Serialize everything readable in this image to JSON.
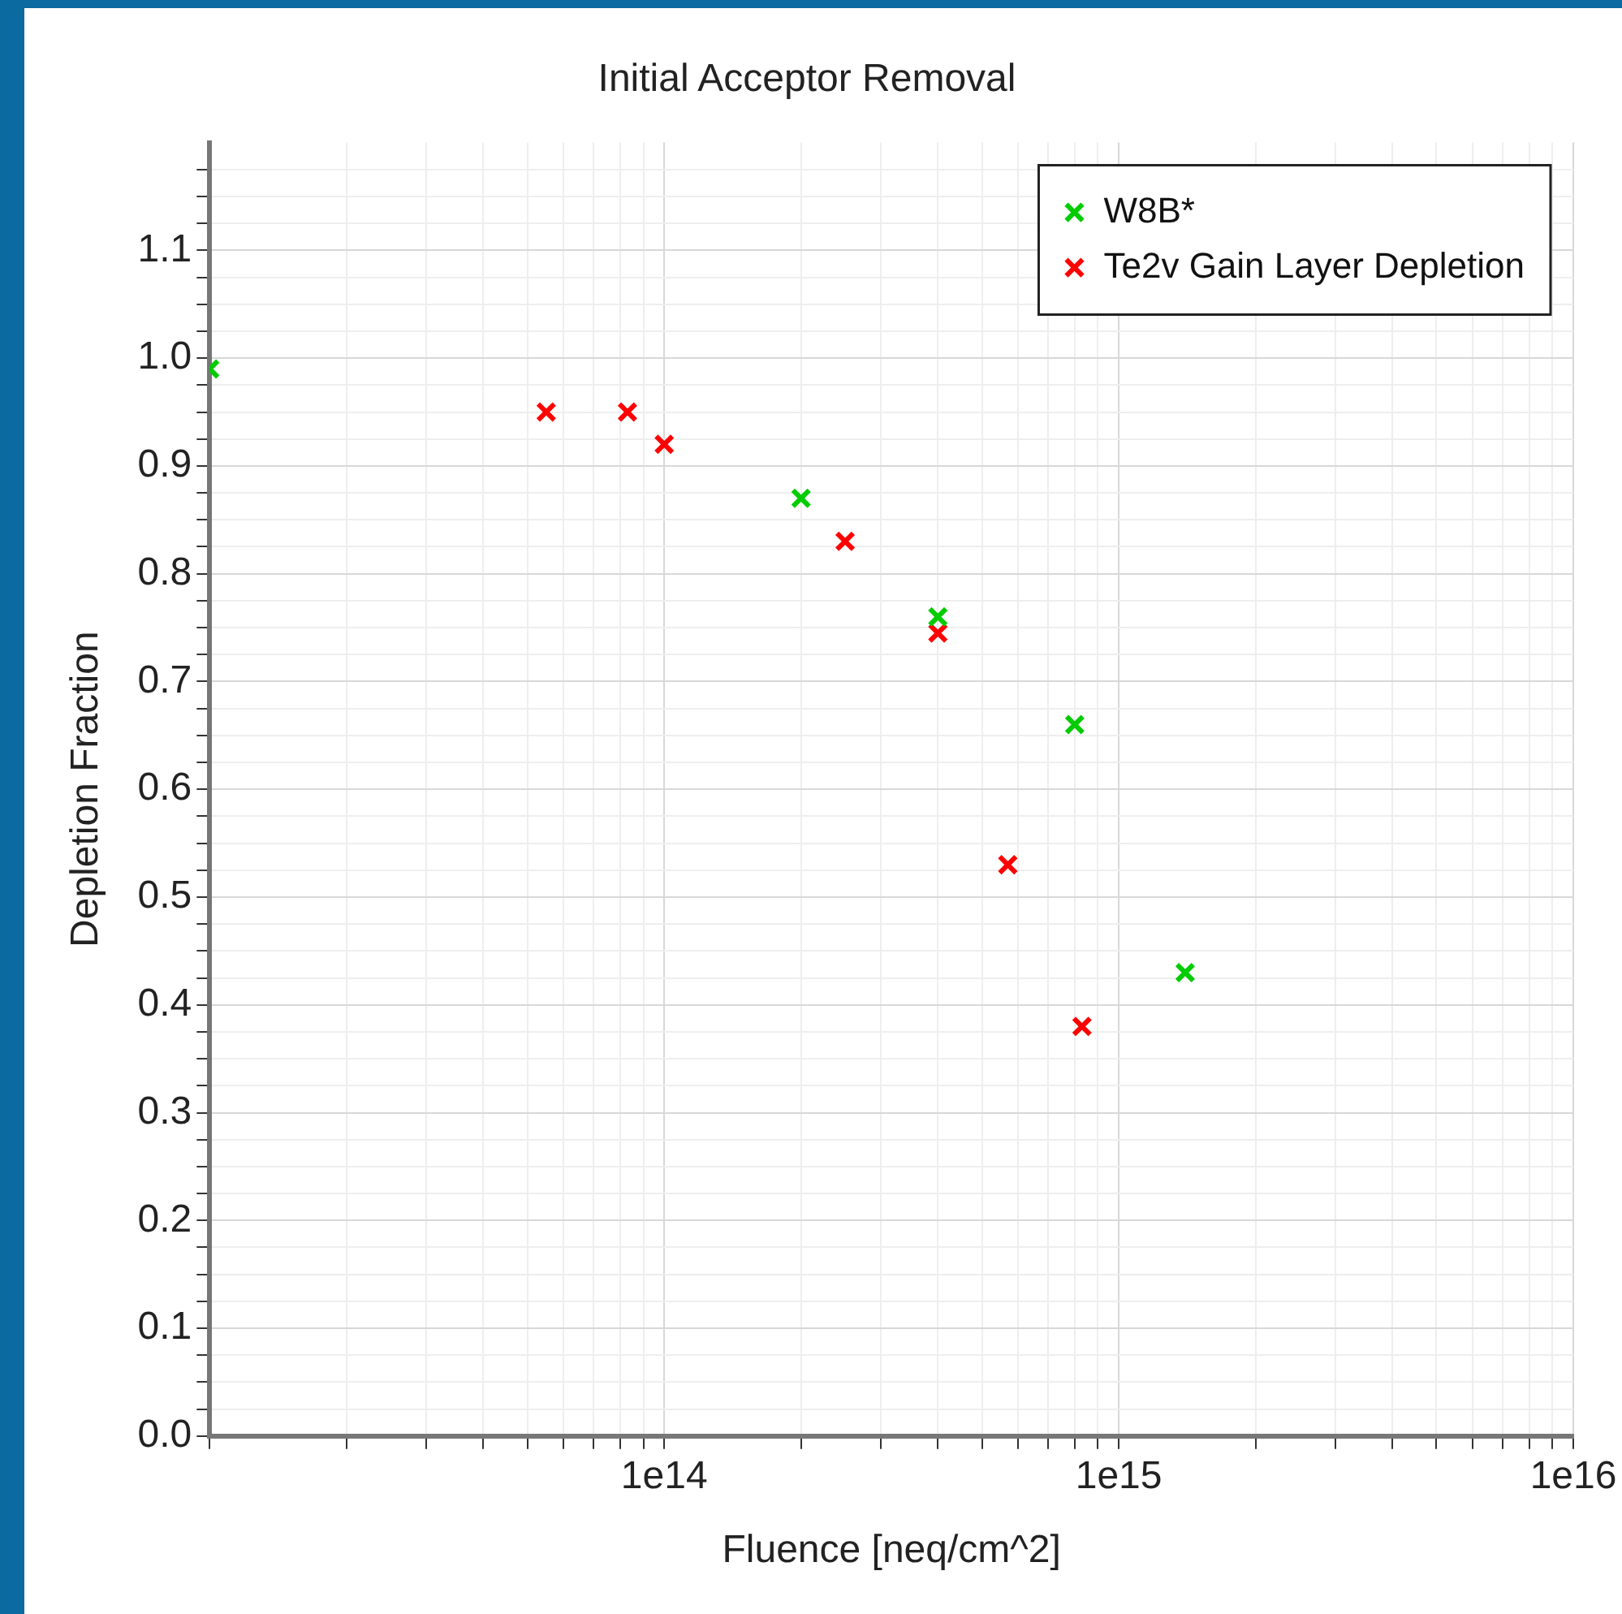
{
  "chart_data": {
    "type": "scatter",
    "title": "Initial Acceptor Removal",
    "xlabel": "Fluence [neq/cm^2]",
    "ylabel": "Depletion Fraction",
    "log": "x",
    "xlim": [
      10000000000000.0,
      1e+16
    ],
    "xticks": [
      {
        "value": 10000000000000.0,
        "label": null
      },
      {
        "value": 100000000000000.0,
        "label": "1e14"
      },
      {
        "value": 1000000000000000.0,
        "label": "1e15"
      },
      {
        "value": 1e+16,
        "label": "1e16"
      }
    ],
    "ylim": [
      0,
      1.2
    ],
    "yticks": [
      {
        "value": 0,
        "label": "0.0"
      },
      {
        "value": 0.1,
        "label": "0.1"
      },
      {
        "value": 0.2,
        "label": "0.2"
      },
      {
        "value": 0.3,
        "label": "0.3"
      },
      {
        "value": 0.4,
        "label": "0.4"
      },
      {
        "value": 0.5,
        "label": "0.5"
      },
      {
        "value": 0.6,
        "label": "0.6"
      },
      {
        "value": 0.7,
        "label": "0.7"
      },
      {
        "value": 0.8,
        "label": "0.8"
      },
      {
        "value": 0.9,
        "label": "0.9"
      },
      {
        "value": 1,
        "label": "1.0"
      },
      {
        "value": 1.1,
        "label": "1.1"
      }
    ],
    "grid": true,
    "legend": "top right",
    "marker": "cross",
    "series": [
      {
        "name": "W8B*",
        "color": "#00cc00",
        "x": [
          10000000000000.0,
          200000000000000.0,
          400000000000000.0,
          800000000000000.0,
          1400000000000000.0
        ],
        "values": [
          0.99,
          0.87,
          0.76,
          0.66,
          0.43
        ]
      },
      {
        "name": "Te2v Gain Layer Depletion",
        "color": "#ff0000",
        "x": [
          55000000000000.0,
          83000000000000.0,
          100000000000000.0,
          250000000000000.0,
          400000000000000.0,
          570000000000000.0,
          830000000000000.0
        ],
        "values": [
          0.95,
          0.95,
          0.92,
          0.83,
          0.745,
          0.53,
          0.38
        ]
      }
    ]
  }
}
